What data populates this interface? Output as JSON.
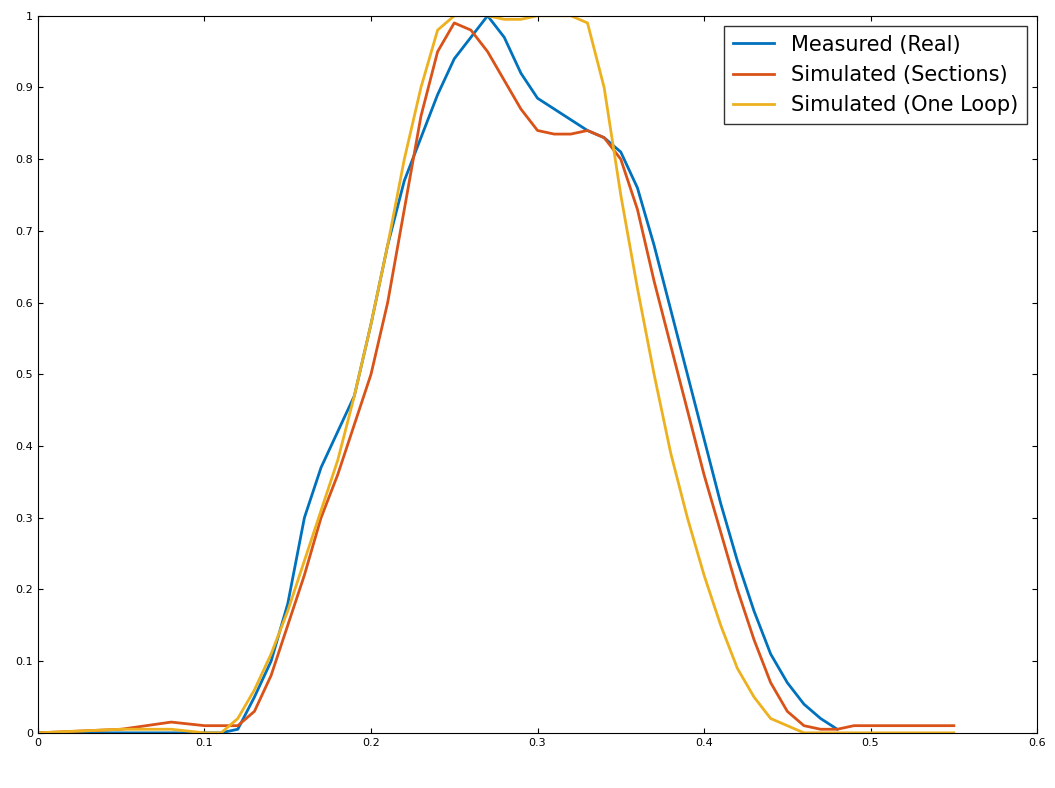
{
  "chart_data": {
    "type": "line",
    "x": [
      0,
      0.05,
      0.08,
      0.1,
      0.11,
      0.12,
      0.13,
      0.14,
      0.15,
      0.16,
      0.17,
      0.18,
      0.19,
      0.2,
      0.21,
      0.22,
      0.23,
      0.24,
      0.25,
      0.26,
      0.27,
      0.28,
      0.29,
      0.3,
      0.31,
      0.32,
      0.33,
      0.34,
      0.35,
      0.36,
      0.37,
      0.38,
      0.39,
      0.4,
      0.41,
      0.42,
      0.43,
      0.44,
      0.45,
      0.46,
      0.47,
      0.48,
      0.49,
      0.5,
      0.55
    ],
    "series": [
      {
        "name": "Measured (Real)",
        "color": "#0072bd",
        "values": [
          0,
          0,
          0,
          0,
          0,
          0.005,
          0.05,
          0.1,
          0.18,
          0.3,
          0.37,
          0.42,
          0.47,
          0.57,
          0.68,
          0.77,
          0.83,
          0.89,
          0.94,
          0.97,
          1.0,
          0.97,
          0.92,
          0.885,
          0.87,
          0.855,
          0.84,
          0.83,
          0.81,
          0.76,
          0.68,
          0.59,
          0.5,
          0.41,
          0.32,
          0.24,
          0.17,
          0.11,
          0.07,
          0.04,
          0.02,
          0.005,
          null,
          null,
          null
        ]
      },
      {
        "name": "Simulated (Sections)",
        "color": "#d95319",
        "values": [
          0,
          0.005,
          0.015,
          0.01,
          0.01,
          0.01,
          0.03,
          0.08,
          0.15,
          0.22,
          0.3,
          0.36,
          0.43,
          0.5,
          0.6,
          0.73,
          0.86,
          0.95,
          0.99,
          0.98,
          0.95,
          0.91,
          0.87,
          0.84,
          0.835,
          0.835,
          0.84,
          0.83,
          0.8,
          0.73,
          0.63,
          0.54,
          0.45,
          0.36,
          0.28,
          0.2,
          0.13,
          0.07,
          0.03,
          0.01,
          0.005,
          0.005,
          0.01,
          0.01,
          0.01
        ]
      },
      {
        "name": "Simulated (One Loop)",
        "color": "#edb120",
        "values": [
          0,
          0.005,
          0.005,
          0,
          0,
          0.02,
          0.06,
          0.11,
          0.17,
          0.24,
          0.31,
          0.38,
          0.47,
          0.57,
          0.68,
          0.8,
          0.9,
          0.98,
          1.0,
          1.0,
          1.0,
          0.995,
          0.995,
          1.0,
          1.0,
          1.0,
          0.99,
          0.9,
          0.75,
          0.62,
          0.5,
          0.39,
          0.3,
          0.22,
          0.15,
          0.09,
          0.05,
          0.02,
          0.01,
          0,
          0,
          0,
          0,
          0,
          0
        ]
      }
    ],
    "xlim": [
      0,
      0.6
    ],
    "xticks": [
      0,
      0.1,
      0.2,
      0.3,
      0.4,
      0.5,
      0.6
    ],
    "ylim": [
      0,
      1
    ],
    "yticks": [
      0,
      0.1,
      0.2,
      0.3,
      0.4,
      0.5,
      0.6,
      0.7,
      0.8,
      0.9,
      1
    ],
    "grid": false,
    "legend": "upper right"
  }
}
